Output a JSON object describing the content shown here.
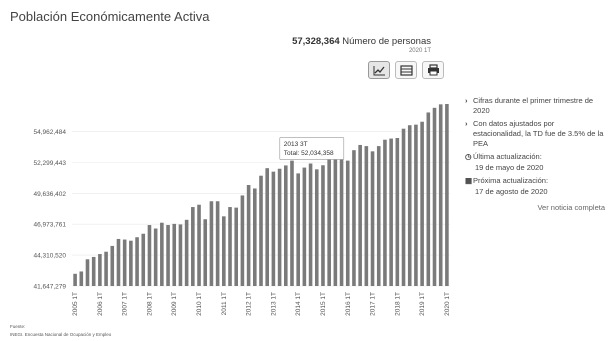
{
  "page": {
    "title": "Población Económicamente Activa"
  },
  "metric": {
    "value": "57,328,364",
    "label": "Número de personas",
    "period": "2020 1T"
  },
  "toolbar": {
    "icons": [
      "line-chart-icon",
      "table-icon",
      "print-icon"
    ]
  },
  "tooltip": {
    "period": "2013 3T",
    "text": "Total: 52,034,358"
  },
  "side": {
    "note1": "Cifras durante el primer trimestre de 2020",
    "note2": "Con datos ajustados por estacionalidad, la TD fue de 3.5% de la PEA",
    "updated_label": "Última actualización:",
    "updated_date": "19 de mayo de 2020",
    "next_label": "Próxima actualización:",
    "next_date": "17 de agosto de 2020",
    "link": "Ver noticia completa"
  },
  "footer": {
    "source_label": "Fuente:",
    "source_text": "INEGI. Encuesta Nacional de Ocupación y Empleo"
  },
  "chart_data": {
    "type": "bar",
    "title": "",
    "xlabel": "",
    "ylabel": "",
    "ylim": [
      41647279,
      57328364
    ],
    "yticks": [
      "41,647,279",
      "44,310,520",
      "46,973,761",
      "49,636,402",
      "52,299,443",
      "54,962,484"
    ],
    "ytick_values": [
      41647279,
      44310520,
      46973761,
      49636402,
      52299443,
      54962484
    ],
    "xtick_labels": [
      "2005 1T",
      "2006 1T",
      "2007 1T",
      "2008 1T",
      "2009 1T",
      "2010 1T",
      "2011 1T",
      "2012 1T",
      "2013 1T",
      "2014 1T",
      "2015 1T",
      "2016 1T",
      "2017 1T",
      "2018 1T",
      "2019 1T",
      "2020 1T"
    ],
    "bar_color": "#7a7a7a",
    "highlight_index": 34,
    "categories": [
      "2005 1T",
      "2005 2T",
      "2005 3T",
      "2005 4T",
      "2006 1T",
      "2006 2T",
      "2006 3T",
      "2006 4T",
      "2007 1T",
      "2007 2T",
      "2007 3T",
      "2007 4T",
      "2008 1T",
      "2008 2T",
      "2008 3T",
      "2008 4T",
      "2009 1T",
      "2009 2T",
      "2009 3T",
      "2009 4T",
      "2010 1T",
      "2010 2T",
      "2010 3T",
      "2010 4T",
      "2011 1T",
      "2011 2T",
      "2011 3T",
      "2011 4T",
      "2012 1T",
      "2012 2T",
      "2012 3T",
      "2012 4T",
      "2013 1T",
      "2013 2T",
      "2013 3T",
      "2013 4T",
      "2014 1T",
      "2014 2T",
      "2014 3T",
      "2014 4T",
      "2015 1T",
      "2015 2T",
      "2015 3T",
      "2015 4T",
      "2016 1T",
      "2016 2T",
      "2016 3T",
      "2016 4T",
      "2017 1T",
      "2017 2T",
      "2017 3T",
      "2017 4T",
      "2018 1T",
      "2018 2T",
      "2018 3T",
      "2018 4T",
      "2019 1T",
      "2019 2T",
      "2019 3T",
      "2019 4T",
      "2020 1T"
    ],
    "values": [
      42700000,
      42900000,
      43950000,
      44150000,
      44400000,
      44600000,
      45100000,
      45700000,
      45650000,
      45550000,
      45850000,
      46150000,
      46900000,
      46600000,
      47100000,
      46900000,
      47000000,
      46950000,
      47350000,
      48450000,
      48650000,
      47400000,
      48950000,
      48950000,
      47650000,
      48450000,
      48400000,
      49450000,
      50350000,
      50050000,
      51150000,
      51800000,
      51500000,
      51750000,
      52034358,
      52450000,
      51350000,
      51850000,
      52200000,
      51700000,
      52050000,
      52550000,
      53250000,
      53400000,
      52450000,
      53350000,
      53800000,
      53700000,
      53250000,
      53700000,
      54250000,
      54350000,
      54400000,
      55200000,
      55500000,
      55550000,
      55800000,
      56600000,
      57000000,
      57300000,
      57328364
    ]
  }
}
